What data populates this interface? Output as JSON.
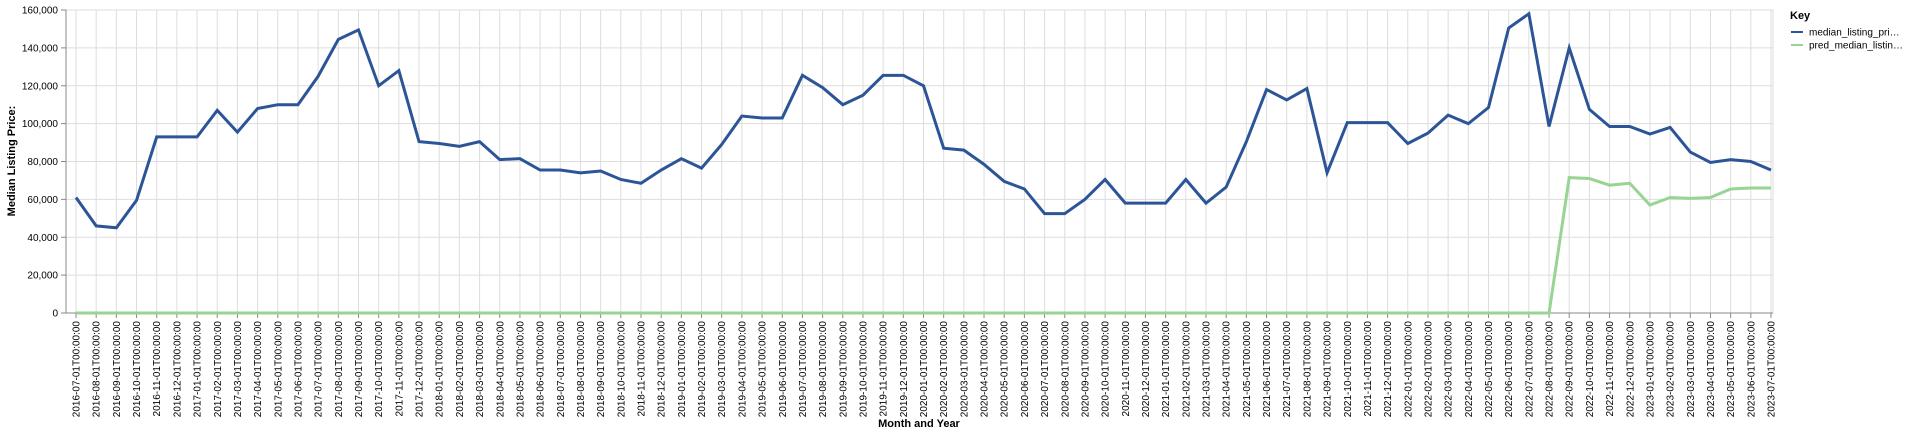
{
  "chart_data": {
    "type": "line",
    "title": "",
    "xlabel": "Month and Year",
    "ylabel": "Median Listing Price:",
    "ylim": [
      0,
      160000
    ],
    "yticks": [
      "0",
      "20,000",
      "40,000",
      "60,000",
      "80,000",
      "100,000",
      "120,000",
      "140,000",
      "160,000"
    ],
    "grid": true,
    "legend": {
      "title": "Key",
      "position": "top-right"
    },
    "x": [
      "2016-07-01T00:00:00",
      "2016-08-01T00:00:00",
      "2016-09-01T00:00:00",
      "2016-10-01T00:00:00",
      "2016-11-01T00:00:00",
      "2016-12-01T00:00:00",
      "2017-01-01T00:00:00",
      "2017-02-01T00:00:00",
      "2017-03-01T00:00:00",
      "2017-04-01T00:00:00",
      "2017-05-01T00:00:00",
      "2017-06-01T00:00:00",
      "2017-07-01T00:00:00",
      "2017-08-01T00:00:00",
      "2017-09-01T00:00:00",
      "2017-10-01T00:00:00",
      "2017-11-01T00:00:00",
      "2017-12-01T00:00:00",
      "2018-01-01T00:00:00",
      "2018-02-01T00:00:00",
      "2018-03-01T00:00:00",
      "2018-04-01T00:00:00",
      "2018-05-01T00:00:00",
      "2018-06-01T00:00:00",
      "2018-07-01T00:00:00",
      "2018-08-01T00:00:00",
      "2018-09-01T00:00:00",
      "2018-10-01T00:00:00",
      "2018-11-01T00:00:00",
      "2018-12-01T00:00:00",
      "2019-01-01T00:00:00",
      "2019-02-01T00:00:00",
      "2019-03-01T00:00:00",
      "2019-04-01T00:00:00",
      "2019-05-01T00:00:00",
      "2019-06-01T00:00:00",
      "2019-07-01T00:00:00",
      "2019-08-01T00:00:00",
      "2019-09-01T00:00:00",
      "2019-10-01T00:00:00",
      "2019-11-01T00:00:00",
      "2019-12-01T00:00:00",
      "2020-01-01T00:00:00",
      "2020-02-01T00:00:00",
      "2020-03-01T00:00:00",
      "2020-04-01T00:00:00",
      "2020-05-01T00:00:00",
      "2020-06-01T00:00:00",
      "2020-07-01T00:00:00",
      "2020-08-01T00:00:00",
      "2020-09-01T00:00:00",
      "2020-10-01T00:00:00",
      "2020-11-01T00:00:00",
      "2020-12-01T00:00:00",
      "2021-01-01T00:00:00",
      "2021-02-01T00:00:00",
      "2021-03-01T00:00:00",
      "2021-04-01T00:00:00",
      "2021-05-01T00:00:00",
      "2021-06-01T00:00:00",
      "2021-07-01T00:00:00",
      "2021-08-01T00:00:00",
      "2021-09-01T00:00:00",
      "2021-10-01T00:00:00",
      "2021-11-01T00:00:00",
      "2021-12-01T00:00:00",
      "2022-01-01T00:00:00",
      "2022-02-01T00:00:00",
      "2022-03-01T00:00:00",
      "2022-04-01T00:00:00",
      "2022-05-01T00:00:00",
      "2022-06-01T00:00:00",
      "2022-07-01T00:00:00",
      "2022-08-01T00:00:00",
      "2022-09-01T00:00:00",
      "2022-10-01T00:00:00",
      "2022-11-01T00:00:00",
      "2022-12-01T00:00:00",
      "2023-01-01T00:00:00",
      "2023-02-01T00:00:00",
      "2023-03-01T00:00:00",
      "2023-04-01T00:00:00",
      "2023-05-01T00:00:00",
      "2023-06-01T00:00:00",
      "2023-07-01T00:00:00"
    ],
    "series": [
      {
        "name": "median_listing_pri…",
        "color": "#2c5597",
        "values": [
          61000,
          46000,
          45000,
          59500,
          93000,
          93000,
          93000,
          107000,
          95500,
          108000,
          110000,
          110000,
          125000,
          144500,
          149500,
          120000,
          128000,
          90500,
          89500,
          88000,
          90500,
          81000,
          81500,
          75500,
          75500,
          74000,
          75000,
          70500,
          68500,
          75500,
          81500,
          76500,
          89000,
          104000,
          103000,
          103000,
          125500,
          119000,
          110000,
          115000,
          125500,
          125500,
          120000,
          87000,
          86000,
          78500,
          69500,
          65500,
          52500,
          52500,
          60000,
          70500,
          58000,
          58000,
          58000,
          70500,
          58000,
          66500,
          90500,
          118000,
          112500,
          118500,
          74000,
          100500,
          100500,
          100500,
          89500,
          95000,
          104500,
          100000,
          108500,
          150500,
          158000,
          98500,
          140000,
          107500,
          98500,
          98500,
          94500,
          98000,
          85000,
          79500,
          81000,
          80000,
          75500
        ]
      },
      {
        "name": "pred_median_listin…",
        "color": "#98d594",
        "values": [
          0,
          0,
          0,
          0,
          0,
          0,
          0,
          0,
          0,
          0,
          0,
          0,
          0,
          0,
          0,
          0,
          0,
          0,
          0,
          0,
          0,
          0,
          0,
          0,
          0,
          0,
          0,
          0,
          0,
          0,
          0,
          0,
          0,
          0,
          0,
          0,
          0,
          0,
          0,
          0,
          0,
          0,
          0,
          0,
          0,
          0,
          0,
          0,
          0,
          0,
          0,
          0,
          0,
          0,
          0,
          0,
          0,
          0,
          0,
          0,
          0,
          0,
          0,
          0,
          0,
          0,
          0,
          0,
          0,
          0,
          0,
          0,
          0,
          0,
          71500,
          71000,
          67500,
          68500,
          57000,
          61000,
          60500,
          61000,
          65500,
          66000,
          66000
        ]
      }
    ]
  }
}
